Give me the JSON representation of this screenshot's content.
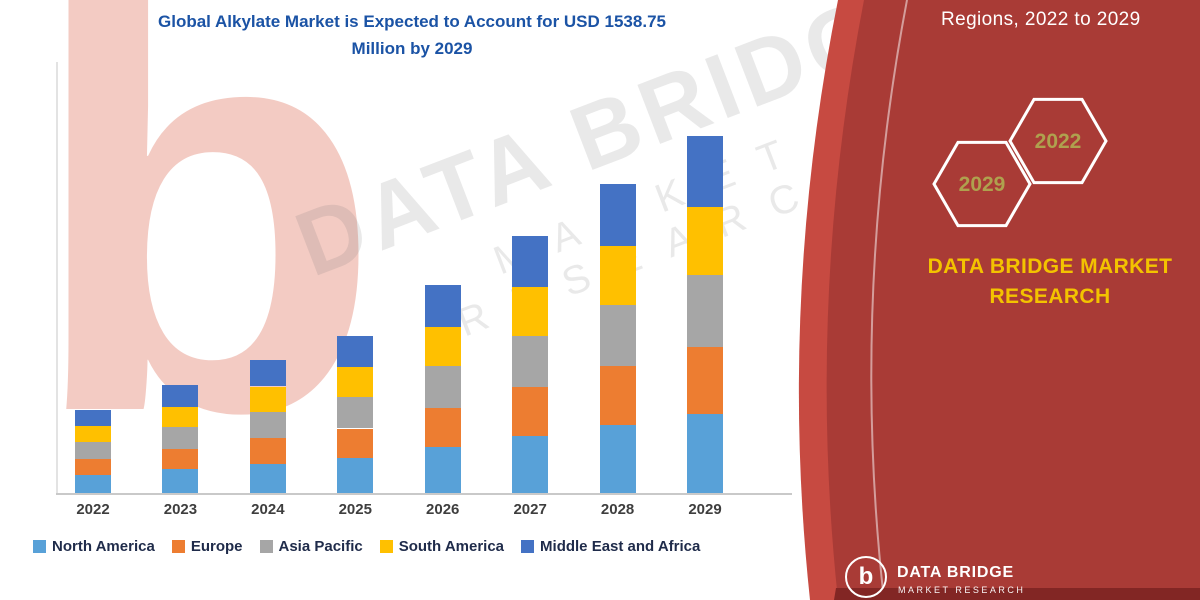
{
  "title": {
    "line1": "Global Alkylate Market is Expected to Account for USD 1538.75",
    "line2": "Million by 2029"
  },
  "watermark": {
    "logo_letter": "b",
    "brand_line1": "DATA BRIDGE",
    "brand_line2": "MARKET RESEARCH"
  },
  "side_panel": {
    "heading": "Regions, 2022 to 2029",
    "hexagons": [
      "2029",
      "2022"
    ],
    "brand": {
      "line1": "DATA BRIDGE MARKET",
      "line2": "RESEARCH"
    },
    "footer": {
      "logo_letter": "b",
      "brand": "DATA BRIDGE",
      "sub": "MARKET RESEARCH"
    },
    "colors": {
      "band_bright": "#C74A41",
      "panel_dark": "#A93B36",
      "strip_dark": "#822624",
      "hex_year": "#AFA14E",
      "accent_yellow": "#F3C300",
      "title_blue": "#1B53A5"
    }
  },
  "chart_data": {
    "type": "bar",
    "stacked": true,
    "title": "Global Alkylate Market is Expected to Account for USD 1538.75 Million by 2029",
    "unit": "USD Million",
    "categories": [
      "2022",
      "2023",
      "2024",
      "2025",
      "2026",
      "2027",
      "2028",
      "2029"
    ],
    "series": [
      {
        "name": "North America",
        "color": "#58A1D8",
        "values": [
          79,
          102,
          126,
          149,
          197,
          244,
          293,
          339
        ]
      },
      {
        "name": "Europe",
        "color": "#ED7D31",
        "values": [
          68,
          88,
          109,
          129,
          170,
          211,
          253,
          292
        ]
      },
      {
        "name": "Asia Pacific",
        "color": "#A6A6A6",
        "values": [
          72,
          93,
          115,
          135,
          179,
          222,
          266,
          308
        ]
      },
      {
        "name": "South America",
        "color": "#FFC000",
        "values": [
          68,
          88,
          109,
          129,
          170,
          211,
          253,
          292
        ]
      },
      {
        "name": "Middle East and Africa",
        "color": "#4472C4",
        "values": [
          71,
          94,
          114,
          135,
          180,
          220,
          267,
          307.75
        ]
      }
    ],
    "totals": [
      358,
      465,
      573,
      677,
      896,
      1108,
      1332,
      1538.75
    ],
    "ylim": [
      0,
      1538.75
    ],
    "gridlines": false,
    "legend_position": "bottom"
  }
}
